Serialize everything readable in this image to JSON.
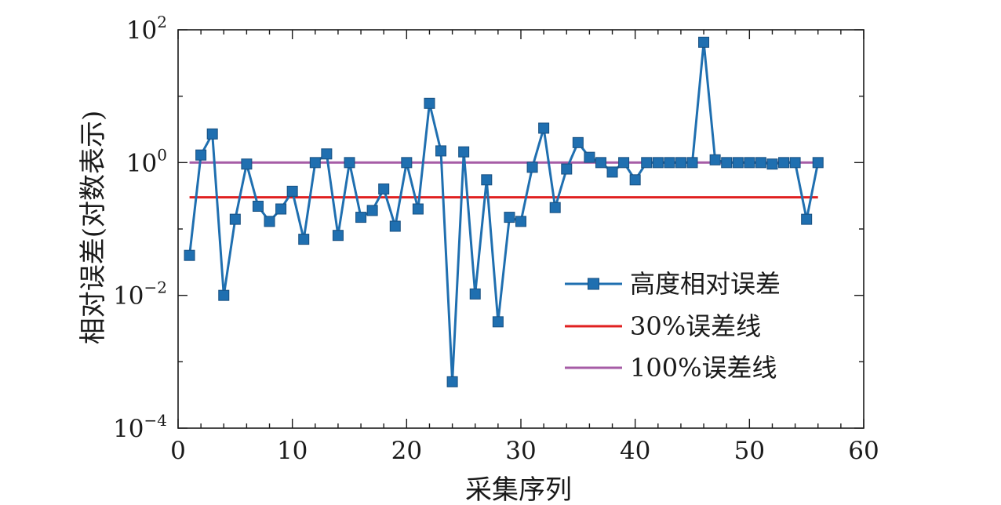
{
  "chart_data": {
    "type": "line",
    "xlabel": "采集序列",
    "ylabel": "相对误差(对数表示)",
    "xlim": [
      0,
      60
    ],
    "ylim": [
      0.0001,
      100
    ],
    "yscale": "log",
    "grid": false,
    "legend_position": "center-right",
    "x_ticks": [
      0,
      10,
      20,
      30,
      40,
      50,
      60
    ],
    "y_ticks": [
      {
        "value": 0.0001,
        "base": "10",
        "exp": "−4"
      },
      {
        "value": 0.01,
        "base": "10",
        "exp": "−2"
      },
      {
        "value": 1,
        "base": "10",
        "exp": "0"
      },
      {
        "value": 100,
        "base": "10",
        "exp": "2"
      }
    ],
    "series": [
      {
        "name": "高度相对误差",
        "color": "#1f6fb0",
        "marker": "square",
        "x": [
          1,
          2,
          3,
          4,
          5,
          6,
          7,
          8,
          9,
          10,
          11,
          12,
          13,
          14,
          15,
          16,
          17,
          18,
          19,
          20,
          21,
          22,
          23,
          24,
          25,
          26,
          27,
          28,
          29,
          30,
          31,
          32,
          33,
          34,
          35,
          36,
          37,
          38,
          39,
          40,
          41,
          42,
          43,
          44,
          45,
          46,
          47,
          48,
          49,
          50,
          51,
          52,
          53,
          54,
          55,
          56
        ],
        "values": [
          0.04,
          1.3,
          2.7,
          0.01,
          0.14,
          0.95,
          0.22,
          0.13,
          0.2,
          0.37,
          0.07,
          1.0,
          1.35,
          0.08,
          1.0,
          0.15,
          0.19,
          0.4,
          0.11,
          1.0,
          0.2,
          7.8,
          1.5,
          0.0005,
          1.45,
          0.0105,
          0.55,
          0.004,
          0.15,
          0.13,
          0.85,
          3.3,
          0.21,
          0.8,
          2.0,
          1.2,
          1.0,
          0.72,
          1.0,
          0.55,
          1.0,
          1.0,
          1.0,
          1.0,
          1.0,
          65,
          1.1,
          1.0,
          1.0,
          1.0,
          1.0,
          0.95,
          1.0,
          1.0,
          0.14,
          1.0
        ]
      },
      {
        "name": "30%误差线",
        "color": "#e02020",
        "x": [
          1,
          56
        ],
        "values": [
          0.3,
          0.3
        ]
      },
      {
        "name": "100%误差线",
        "color": "#a65ca6",
        "x": [
          1,
          56
        ],
        "values": [
          1,
          1
        ]
      }
    ]
  }
}
